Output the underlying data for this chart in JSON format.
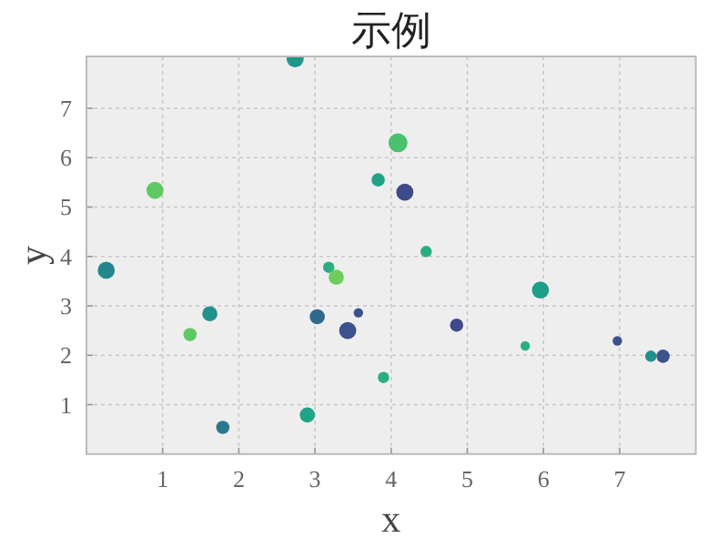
{
  "chart_data": {
    "type": "bubble",
    "title": "示例",
    "xlabel": "x",
    "ylabel": "y",
    "xlim": [
      0,
      8
    ],
    "ylim": [
      0,
      8.05
    ],
    "xticks": [
      1,
      2,
      3,
      4,
      5,
      6,
      7
    ],
    "yticks": [
      1,
      2,
      3,
      4,
      5,
      6,
      7
    ],
    "grid": true,
    "x": [
      2.74,
      0.9,
      3.83,
      4.09,
      4.18,
      4.46,
      0.26,
      1.62,
      1.36,
      1.79,
      2.9,
      3.18,
      3.28,
      3.03,
      3.43,
      3.57,
      3.9,
      5.96,
      4.86,
      5.76,
      6.97,
      7.41,
      7.57
    ],
    "values": [
      8.0,
      5.34,
      5.55,
      6.3,
      5.3,
      4.1,
      3.72,
      2.84,
      2.42,
      0.54,
      0.79,
      3.78,
      3.58,
      2.78,
      2.5,
      2.86,
      1.55,
      3.32,
      2.61,
      2.19,
      2.29,
      1.98,
      1.98
    ],
    "sizes": [
      0.81,
      0.81,
      0.49,
      1,
      0.81,
      0.36,
      0.81,
      0.64,
      0.49,
      0.49,
      0.64,
      0.36,
      0.64,
      0.64,
      0.81,
      0.25,
      0.36,
      0.81,
      0.49,
      0.25,
      0.25,
      0.36,
      0.49
    ],
    "colors": [
      "#1f968b",
      "#5ec962",
      "#20a386",
      "#4ac16d",
      "#3e4a89",
      "#29af7f",
      "#24878e",
      "#21918c",
      "#5ec962",
      "#2a788e",
      "#20a386",
      "#29af7f",
      "#6ccd5a",
      "#31688e",
      "#3b528b",
      "#3b528b",
      "#29af7f",
      "#1f9e89",
      "#3e4a89",
      "#29af7f",
      "#3b528b",
      "#21918c",
      "#3b528b"
    ]
  }
}
